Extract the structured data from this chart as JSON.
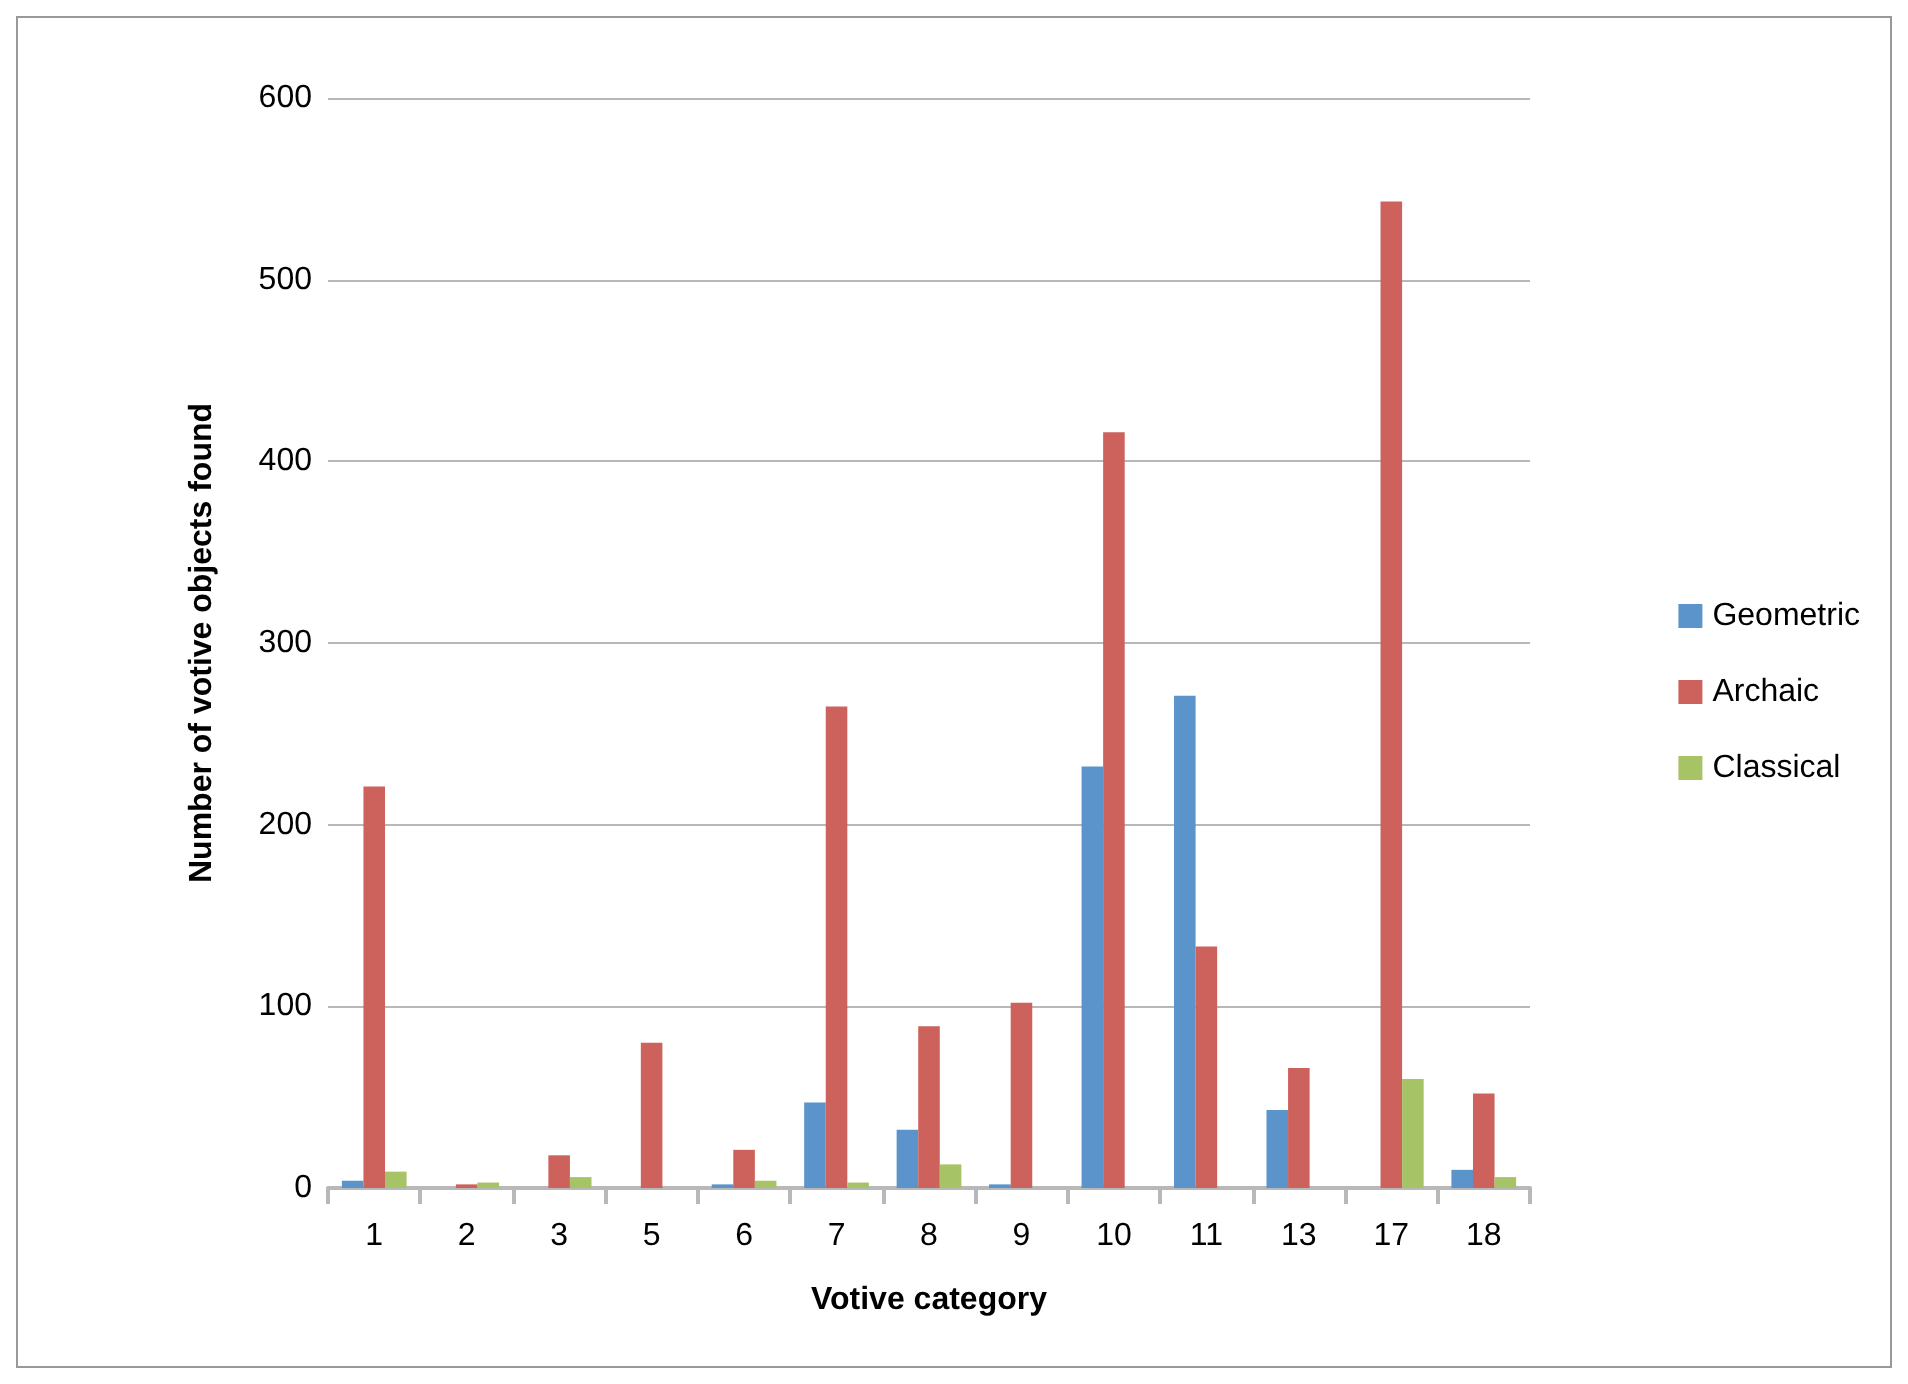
{
  "chart_data": {
    "type": "bar",
    "xlabel": "Votive category",
    "ylabel": "Number of votive objects found",
    "categories": [
      "1",
      "2",
      "3",
      "5",
      "6",
      "7",
      "8",
      "9",
      "10",
      "11",
      "13",
      "17",
      "18"
    ],
    "series": [
      {
        "name": "Geometric",
        "color": "#5b93cb",
        "values": [
          4,
          0,
          0,
          0,
          2,
          47,
          32,
          2,
          232,
          271,
          43,
          0,
          10
        ]
      },
      {
        "name": "Archaic",
        "color": "#cd625c",
        "values": [
          221,
          2,
          18,
          80,
          21,
          265,
          89,
          102,
          416,
          133,
          66,
          543,
          52
        ]
      },
      {
        "name": "Classical",
        "color": "#a6c365",
        "values": [
          9,
          3,
          6,
          0,
          4,
          3,
          13,
          0,
          0,
          0,
          0,
          60,
          6
        ]
      }
    ],
    "ylim": [
      0,
      600
    ],
    "yticks": [
      0,
      100,
      200,
      300,
      400,
      500,
      600
    ],
    "grid": "y",
    "legend": "right"
  }
}
